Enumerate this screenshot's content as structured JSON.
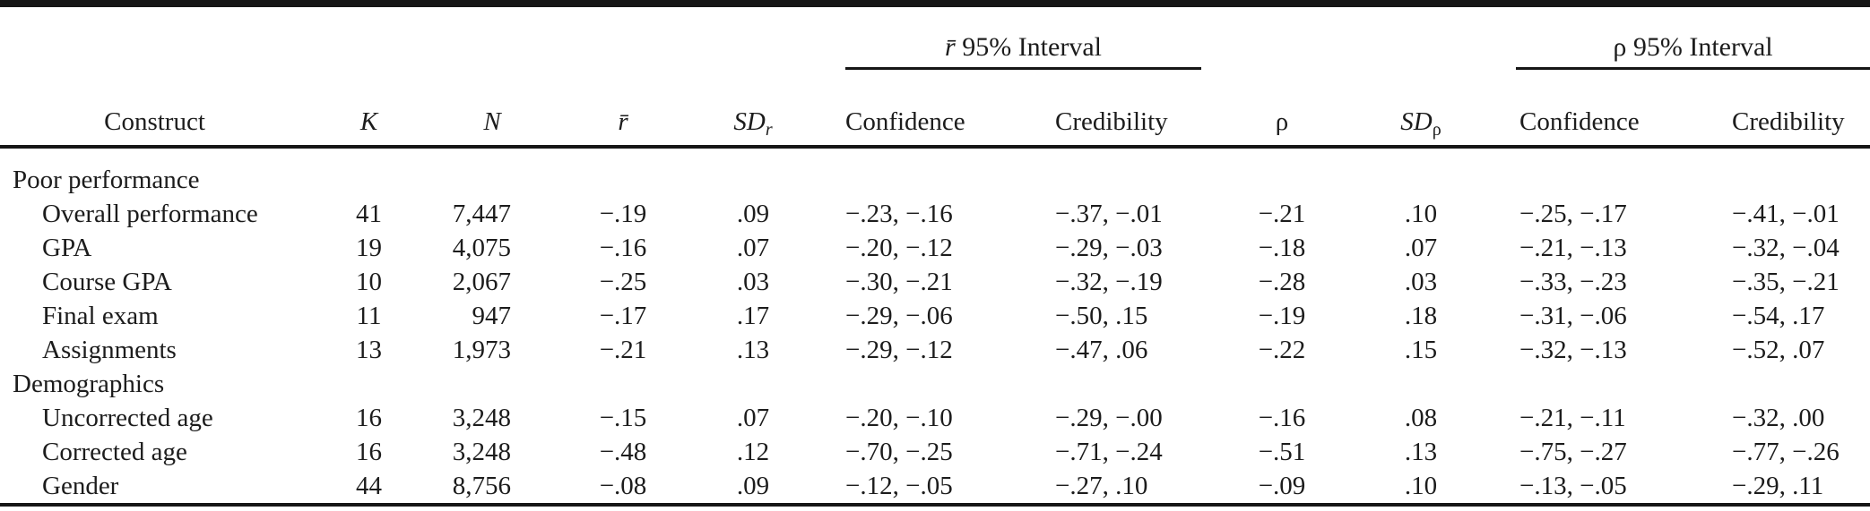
{
  "table": {
    "spanners": {
      "rbar": "r̄",
      "rbar_rest": " 95% Interval",
      "rho": "ρ",
      "rho_rest": " 95% Interval"
    },
    "header": {
      "construct": "Construct",
      "k": "K",
      "n": "N",
      "rbar": "r̄",
      "sd": "SD",
      "sd_r_sub": "r",
      "confidence": "Confidence",
      "credibility": "Credibility",
      "rho": "ρ",
      "sd_rho_sub": "ρ"
    },
    "rows": [
      {
        "type": "section",
        "construct": "Poor performance",
        "cells": [
          "",
          "",
          "",
          "",
          "",
          "",
          "",
          "",
          "",
          ""
        ]
      },
      {
        "type": "data",
        "construct": "Overall performance",
        "cells": [
          "41",
          "7,447",
          "−.19",
          ".09",
          "−.23, −.16",
          "−.37, −.01",
          "−.21",
          ".10",
          "−.25, −.17",
          "−.41, −.01"
        ]
      },
      {
        "type": "data",
        "construct": "GPA",
        "cells": [
          "19",
          "4,075",
          "−.16",
          ".07",
          "−.20, −.12",
          "−.29, −.03",
          "−.18",
          ".07",
          "−.21, −.13",
          "−.32, −.04"
        ]
      },
      {
        "type": "data",
        "construct": "Course GPA",
        "cells": [
          "10",
          "2,067",
          "−.25",
          ".03",
          "−.30, −.21",
          "−.32, −.19",
          "−.28",
          ".03",
          "−.33, −.23",
          "−.35, −.21"
        ]
      },
      {
        "type": "data",
        "construct": "Final exam",
        "cells": [
          "11",
          "947",
          "−.17",
          ".17",
          "−.29, −.06",
          "−.50, .15",
          "−.19",
          ".18",
          "−.31, −.06",
          "−.54, .17"
        ]
      },
      {
        "type": "data",
        "construct": "Assignments",
        "cells": [
          "13",
          "1,973",
          "−.21",
          ".13",
          "−.29, −.12",
          "−.47, .06",
          "−.22",
          ".15",
          "−.32, −.13",
          "−.52, .07"
        ]
      },
      {
        "type": "section",
        "construct": "Demographics",
        "cells": [
          "",
          "",
          "",
          "",
          "",
          "",
          "",
          "",
          "",
          ""
        ]
      },
      {
        "type": "data",
        "construct": "Uncorrected age",
        "cells": [
          "16",
          "3,248",
          "−.15",
          ".07",
          "−.20, −.10",
          "−.29, −.00",
          "−.16",
          ".08",
          "−.21, −.11",
          "−.32, .00"
        ]
      },
      {
        "type": "data",
        "construct": "Corrected age",
        "cells": [
          "16",
          "3,248",
          "−.48",
          ".12",
          "−.70, −.25",
          "−.71, −.24",
          "−.51",
          ".13",
          "−.75, −.27",
          "−.77, −.26"
        ]
      },
      {
        "type": "data",
        "construct": "Gender",
        "cells": [
          "44",
          "8,756",
          "−.08",
          ".09",
          "−.12, −.05",
          "−.27, .10",
          "−.09",
          ".10",
          "−.13, −.05",
          "−.29, .11"
        ]
      }
    ]
  }
}
